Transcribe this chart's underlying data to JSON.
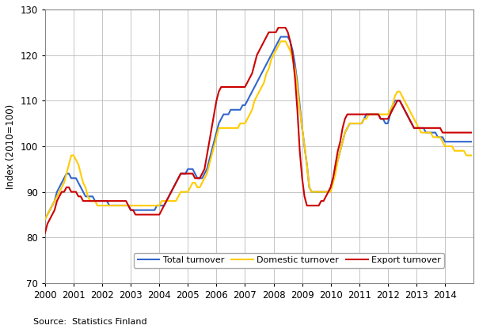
{
  "title": "",
  "ylabel": "Index (2010=100)",
  "source_text": "Source:  Statistics Finland",
  "ylim": [
    70,
    130
  ],
  "yticks": [
    70,
    80,
    90,
    100,
    110,
    120,
    130
  ],
  "xlim_start": 2000.0,
  "xlim_end": 2015.0,
  "xtick_labels": [
    "2000",
    "2001",
    "2002",
    "2003",
    "2004",
    "2005",
    "2006",
    "2007",
    "2008",
    "2009",
    "2010",
    "2011",
    "2012",
    "2013",
    "2014"
  ],
  "legend_labels": [
    "Total turnover",
    "Domestic turnover",
    "Export turnover"
  ],
  "colors": {
    "total": "#3366CC",
    "domestic": "#FFCC00",
    "export": "#CC0000"
  },
  "linewidth": 1.5,
  "total_x": [
    2000.0,
    2000.083,
    2000.167,
    2000.25,
    2000.333,
    2000.417,
    2000.5,
    2000.583,
    2000.667,
    2000.75,
    2000.833,
    2000.917,
    2001.0,
    2001.083,
    2001.167,
    2001.25,
    2001.333,
    2001.417,
    2001.5,
    2001.583,
    2001.667,
    2001.75,
    2001.833,
    2001.917,
    2002.0,
    2002.083,
    2002.167,
    2002.25,
    2002.333,
    2002.417,
    2002.5,
    2002.583,
    2002.667,
    2002.75,
    2002.833,
    2002.917,
    2003.0,
    2003.083,
    2003.167,
    2003.25,
    2003.333,
    2003.417,
    2003.5,
    2003.583,
    2003.667,
    2003.75,
    2003.833,
    2003.917,
    2004.0,
    2004.083,
    2004.167,
    2004.25,
    2004.333,
    2004.417,
    2004.5,
    2004.583,
    2004.667,
    2004.75,
    2004.833,
    2004.917,
    2005.0,
    2005.083,
    2005.167,
    2005.25,
    2005.333,
    2005.417,
    2005.5,
    2005.583,
    2005.667,
    2005.75,
    2005.833,
    2005.917,
    2006.0,
    2006.083,
    2006.167,
    2006.25,
    2006.333,
    2006.417,
    2006.5,
    2006.583,
    2006.667,
    2006.75,
    2006.833,
    2006.917,
    2007.0,
    2007.083,
    2007.167,
    2007.25,
    2007.333,
    2007.417,
    2007.5,
    2007.583,
    2007.667,
    2007.75,
    2007.833,
    2007.917,
    2008.0,
    2008.083,
    2008.167,
    2008.25,
    2008.333,
    2008.417,
    2008.5,
    2008.583,
    2008.667,
    2008.75,
    2008.833,
    2008.917,
    2009.0,
    2009.083,
    2009.167,
    2009.25,
    2009.333,
    2009.417,
    2009.5,
    2009.583,
    2009.667,
    2009.75,
    2009.833,
    2009.917,
    2010.0,
    2010.083,
    2010.167,
    2010.25,
    2010.333,
    2010.417,
    2010.5,
    2010.583,
    2010.667,
    2010.75,
    2010.833,
    2010.917,
    2011.0,
    2011.083,
    2011.167,
    2011.25,
    2011.333,
    2011.417,
    2011.5,
    2011.583,
    2011.667,
    2011.75,
    2011.833,
    2011.917,
    2012.0,
    2012.083,
    2012.167,
    2012.25,
    2012.333,
    2012.417,
    2012.5,
    2012.583,
    2012.667,
    2012.75,
    2012.833,
    2012.917,
    2013.0,
    2013.083,
    2013.167,
    2013.25,
    2013.333,
    2013.417,
    2013.5,
    2013.583,
    2013.667,
    2013.75,
    2013.833,
    2013.917,
    2014.0,
    2014.083,
    2014.167,
    2014.25,
    2014.333,
    2014.417,
    2014.5,
    2014.583,
    2014.667,
    2014.75,
    2014.833,
    2014.917
  ],
  "total_y": [
    84,
    85,
    86,
    87,
    88,
    90,
    91,
    92,
    93,
    94,
    94,
    93,
    93,
    93,
    92,
    91,
    90,
    89,
    89,
    89,
    89,
    88,
    88,
    88,
    88,
    88,
    88,
    87,
    87,
    87,
    87,
    87,
    87,
    87,
    87,
    87,
    86,
    86,
    86,
    86,
    86,
    86,
    86,
    86,
    86,
    86,
    86,
    87,
    87,
    87,
    87,
    88,
    89,
    90,
    91,
    92,
    93,
    94,
    94,
    94,
    95,
    95,
    95,
    94,
    93,
    93,
    93,
    94,
    95,
    97,
    99,
    101,
    103,
    105,
    106,
    107,
    107,
    107,
    108,
    108,
    108,
    108,
    108,
    109,
    109,
    110,
    111,
    112,
    113,
    114,
    115,
    116,
    117,
    118,
    119,
    120,
    121,
    122,
    123,
    124,
    124,
    124,
    124,
    123,
    121,
    118,
    114,
    109,
    104,
    100,
    96,
    91,
    90,
    90,
    90,
    90,
    90,
    90,
    90,
    90,
    91,
    93,
    95,
    97,
    99,
    101,
    103,
    104,
    105,
    105,
    105,
    105,
    105,
    105,
    106,
    107,
    107,
    107,
    107,
    107,
    107,
    106,
    106,
    105,
    105,
    107,
    109,
    110,
    110,
    110,
    109,
    108,
    107,
    106,
    105,
    104,
    104,
    104,
    104,
    104,
    103,
    103,
    103,
    103,
    103,
    102,
    102,
    102,
    101,
    101,
    101,
    101,
    101,
    101,
    101,
    101,
    101,
    101,
    101,
    101
  ],
  "domestic_y": [
    84,
    85,
    86,
    87,
    88,
    89,
    90,
    91,
    92,
    94,
    96,
    98,
    98,
    97,
    96,
    94,
    92,
    91,
    89,
    88,
    88,
    88,
    87,
    87,
    87,
    87,
    87,
    87,
    87,
    87,
    87,
    87,
    87,
    87,
    87,
    87,
    87,
    87,
    87,
    87,
    87,
    87,
    87,
    87,
    87,
    87,
    87,
    87,
    87,
    88,
    88,
    88,
    88,
    88,
    88,
    88,
    89,
    90,
    90,
    90,
    90,
    91,
    92,
    92,
    91,
    91,
    92,
    93,
    94,
    96,
    98,
    100,
    102,
    104,
    104,
    104,
    104,
    104,
    104,
    104,
    104,
    104,
    105,
    105,
    105,
    106,
    107,
    108,
    110,
    111,
    112,
    113,
    114,
    116,
    117,
    119,
    120,
    121,
    122,
    123,
    123,
    123,
    122,
    121,
    119,
    117,
    113,
    108,
    104,
    100,
    96,
    91,
    90,
    90,
    90,
    90,
    90,
    90,
    90,
    90,
    90,
    92,
    94,
    97,
    99,
    101,
    103,
    104,
    105,
    105,
    105,
    105,
    105,
    105,
    106,
    106,
    107,
    107,
    107,
    107,
    107,
    107,
    107,
    107,
    107,
    108,
    109,
    111,
    112,
    112,
    111,
    110,
    109,
    108,
    107,
    106,
    105,
    104,
    103,
    103,
    103,
    103,
    103,
    102,
    102,
    102,
    102,
    101,
    100,
    100,
    100,
    100,
    99,
    99,
    99,
    99,
    99,
    98,
    98,
    98
  ],
  "export_y": [
    81,
    83,
    84,
    85,
    86,
    88,
    89,
    90,
    90,
    91,
    91,
    90,
    90,
    90,
    89,
    89,
    88,
    88,
    88,
    88,
    88,
    88,
    88,
    88,
    88,
    88,
    88,
    88,
    88,
    88,
    88,
    88,
    88,
    88,
    88,
    87,
    86,
    86,
    85,
    85,
    85,
    85,
    85,
    85,
    85,
    85,
    85,
    85,
    85,
    86,
    87,
    88,
    89,
    90,
    91,
    92,
    93,
    94,
    94,
    94,
    94,
    94,
    94,
    93,
    93,
    93,
    94,
    95,
    98,
    101,
    104,
    107,
    110,
    112,
    113,
    113,
    113,
    113,
    113,
    113,
    113,
    113,
    113,
    113,
    113,
    114,
    115,
    116,
    118,
    120,
    121,
    122,
    123,
    124,
    125,
    125,
    125,
    125,
    126,
    126,
    126,
    126,
    125,
    123,
    120,
    115,
    108,
    99,
    93,
    89,
    87,
    87,
    87,
    87,
    87,
    87,
    88,
    88,
    89,
    90,
    91,
    93,
    96,
    99,
    101,
    104,
    106,
    107,
    107,
    107,
    107,
    107,
    107,
    107,
    107,
    107,
    107,
    107,
    107,
    107,
    107,
    106,
    106,
    106,
    106,
    107,
    108,
    109,
    110,
    110,
    109,
    108,
    107,
    106,
    105,
    104,
    104,
    104,
    104,
    104,
    104,
    104,
    104,
    104,
    104,
    104,
    104,
    103,
    103,
    103,
    103,
    103,
    103,
    103,
    103,
    103,
    103,
    103,
    103,
    103
  ]
}
